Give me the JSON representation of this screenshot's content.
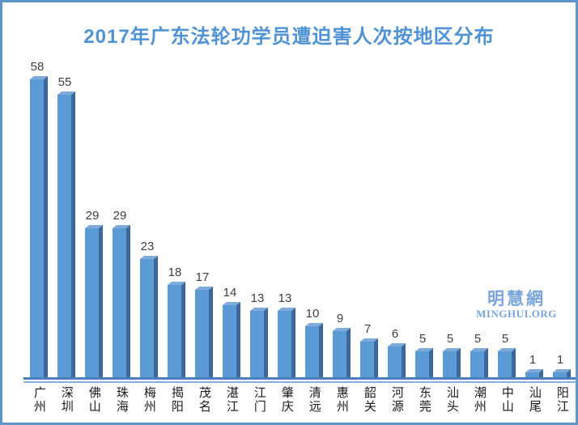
{
  "watermark": {
    "line1": "明慧網",
    "line2": "MINGHUI.ORG"
  },
  "chart_data": {
    "type": "bar",
    "title": "2017年广东法轮功学员遭迫害人次按地区分布",
    "categories": [
      "广州",
      "深圳",
      "佛山",
      "珠海",
      "梅州",
      "揭阳",
      "茂名",
      "湛江",
      "江门",
      "肇庆",
      "清远",
      "惠州",
      "韶关",
      "河源",
      "东莞",
      "汕头",
      "潮州",
      "中山",
      "汕尾",
      "阳江"
    ],
    "values": [
      58,
      55,
      29,
      29,
      23,
      18,
      17,
      14,
      13,
      13,
      10,
      9,
      7,
      6,
      5,
      5,
      5,
      5,
      1,
      1
    ],
    "xlabel": "",
    "ylabel": "",
    "ylim": [
      0,
      60
    ],
    "grid": false,
    "legend_position": "none",
    "data_labels": true,
    "bar_style": "3d",
    "colors": {
      "bar_front": "#5b9bd5",
      "bar_side": "#3c689c",
      "bar_top": "#7fabda",
      "axis_line": "#4d7ebf",
      "axis_line_light": "#86afde",
      "title": "#4f93d5",
      "value_label": "#3f3f3f",
      "category_label": "#1a1a1a",
      "watermark": "#79a5d9",
      "border": "#5e96cc"
    }
  }
}
